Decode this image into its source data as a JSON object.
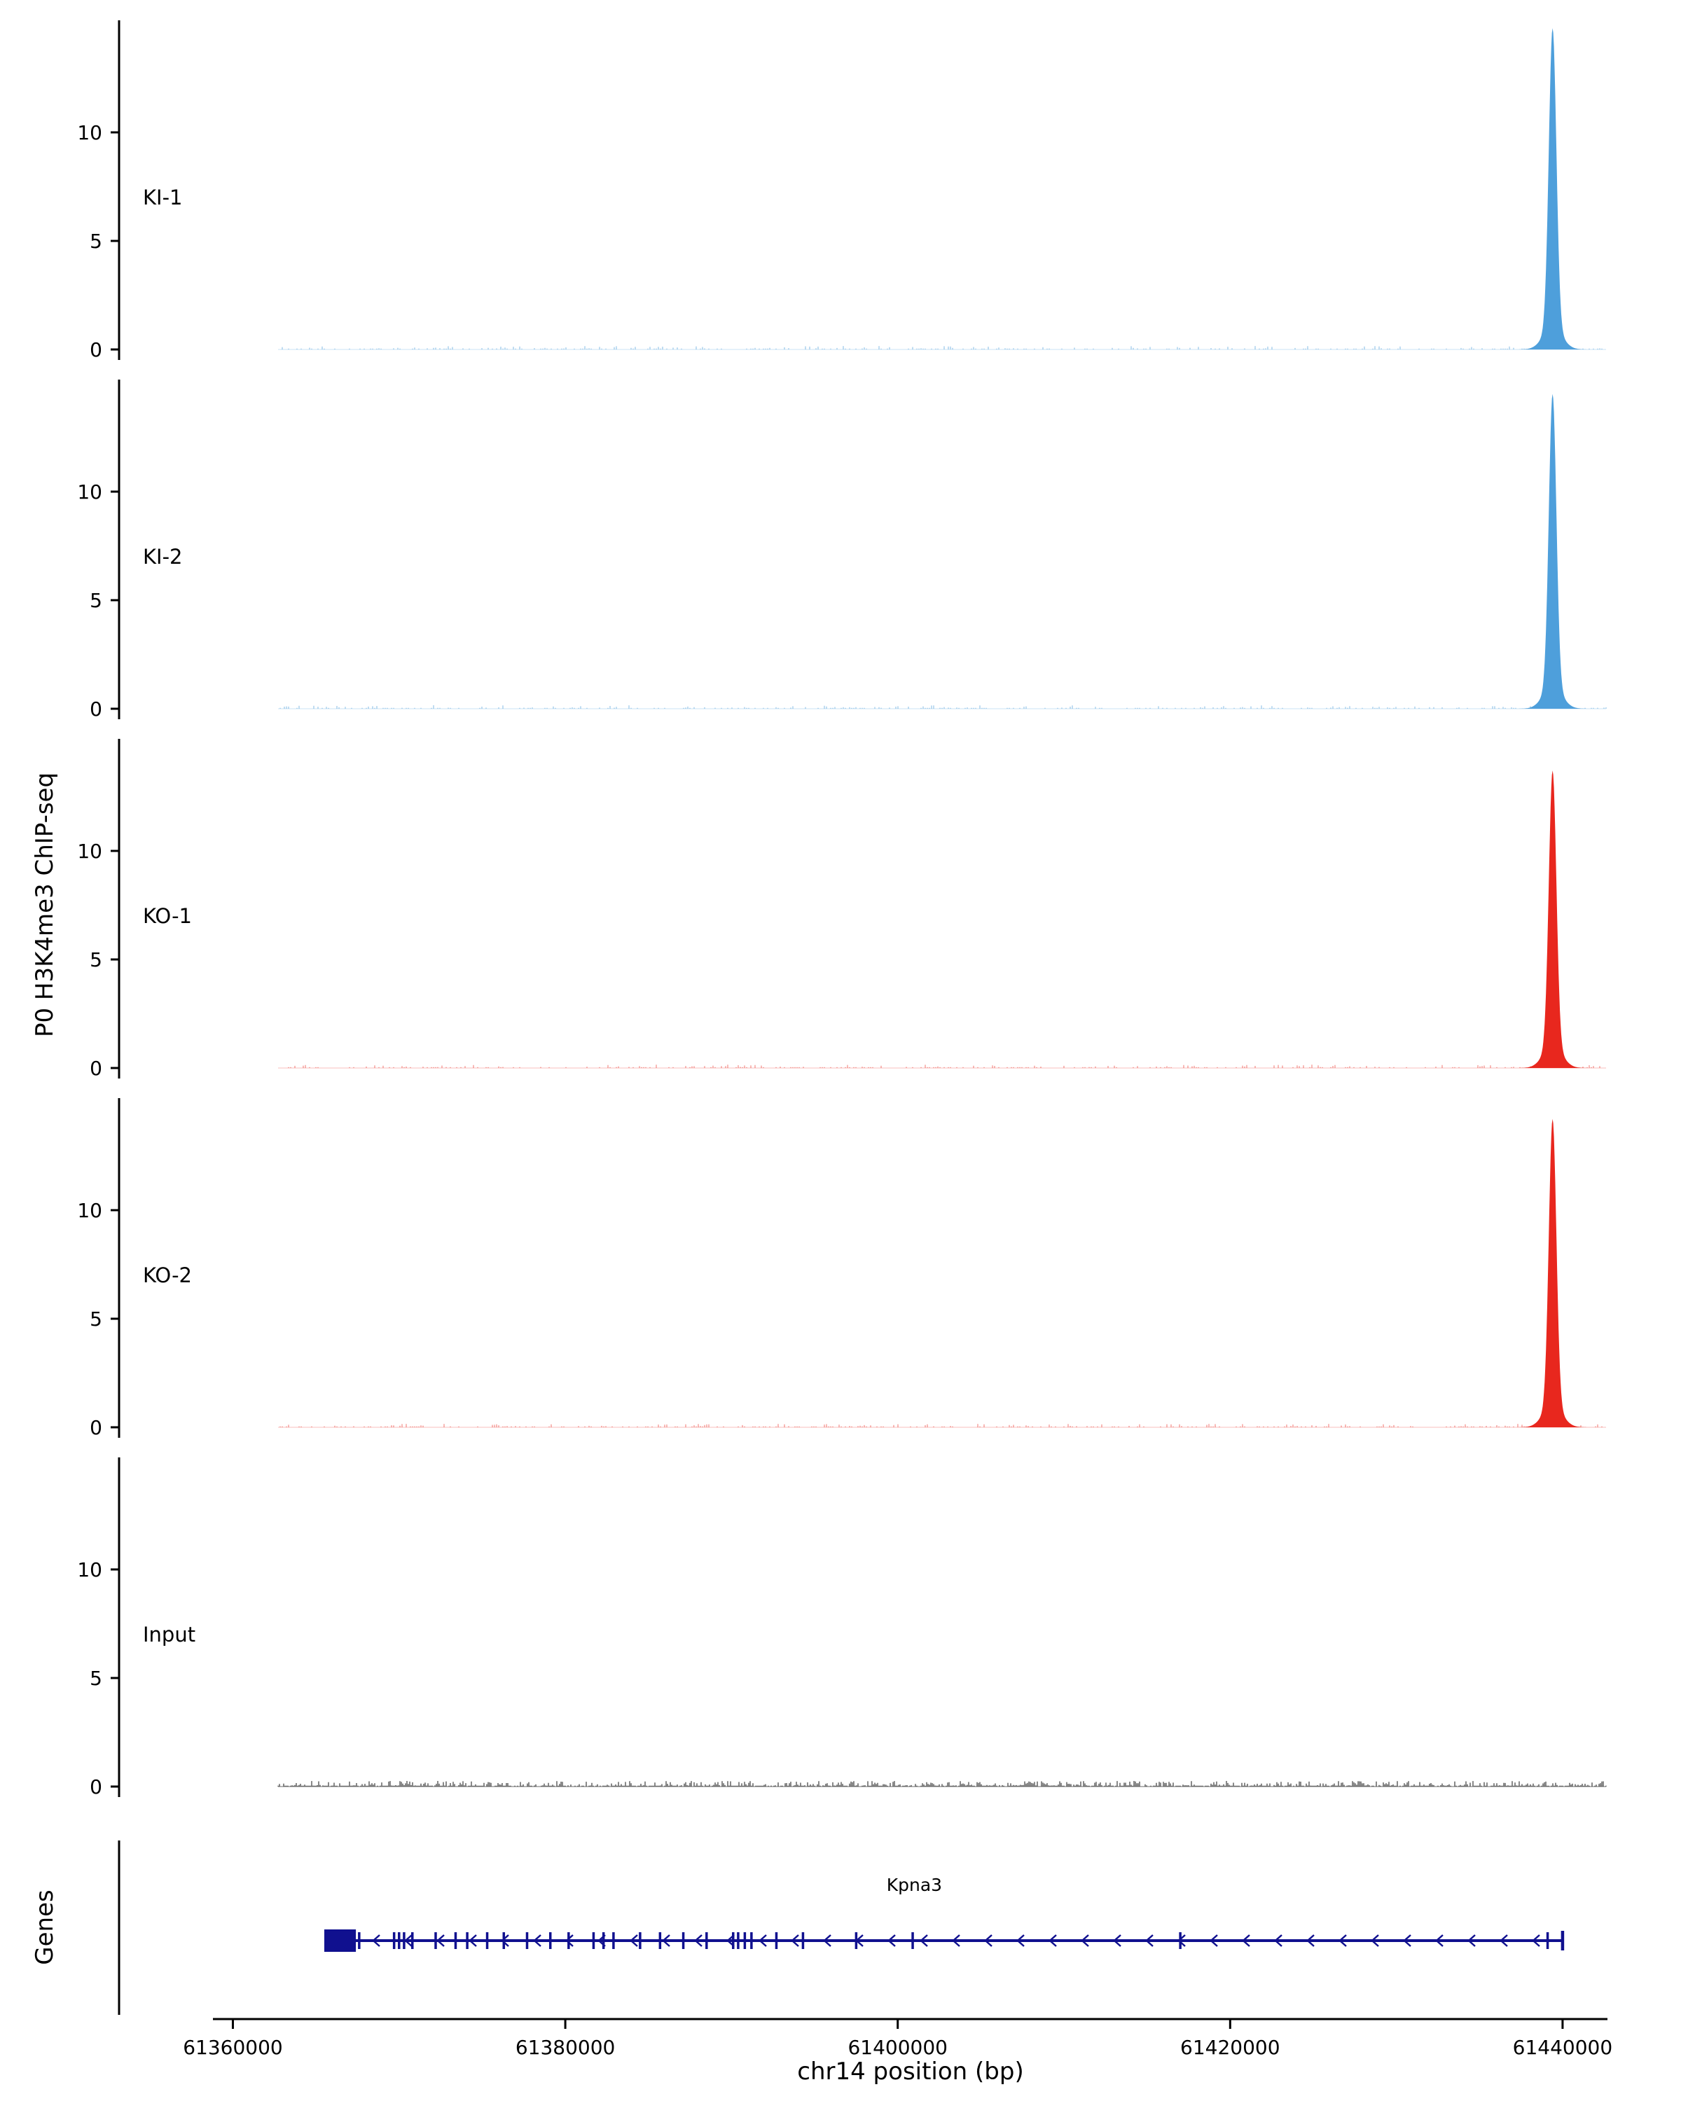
{
  "figure": {
    "y_axis_label": "P0 H3K4me3 ChIP-seq",
    "x_axis_label": "chr14 position (bp)",
    "genes_label": "Genes"
  },
  "chart_data": {
    "type": "area",
    "title": "",
    "xlabel": "chr14 position (bp)",
    "ylabel": "P0 H3K4me3 ChIP-seq",
    "xlim": [
      61358800,
      61442700
    ],
    "x_ticks": [
      61360000,
      61380000,
      61400000,
      61420000,
      61440000
    ],
    "y_ticks": [
      0,
      5,
      10
    ],
    "ylim": [
      0,
      15
    ],
    "legend": "none",
    "grid": false,
    "peak_center_bp": 61439400,
    "peak_sigma_bp": 320,
    "peak_shoulder_height": 1.0,
    "peak_shoulder_sigma_bp": 800,
    "tracks": [
      {
        "label": "KI-1",
        "color": "#4E9FDB",
        "peak_height": 13.8,
        "noise_seed": 11,
        "noise_skip": 0.62,
        "noise_max": 0.16,
        "noise_opacity": 0.35
      },
      {
        "label": "KI-2",
        "color": "#4E9FDB",
        "peak_height": 13.5,
        "noise_seed": 22,
        "noise_skip": 0.6,
        "noise_max": 0.16,
        "noise_opacity": 0.35
      },
      {
        "label": "KO-1",
        "color": "#E8271E",
        "peak_height": 12.7,
        "noise_seed": 33,
        "noise_skip": 0.62,
        "noise_max": 0.16,
        "noise_opacity": 0.32
      },
      {
        "label": "KO-2",
        "color": "#E8271E",
        "peak_height": 13.2,
        "noise_seed": 44,
        "noise_skip": 0.62,
        "noise_max": 0.16,
        "noise_opacity": 0.32
      },
      {
        "label": "Input",
        "color": "#3A3A3A",
        "peak_height": 0,
        "noise_seed": 55,
        "noise_skip": 0.15,
        "noise_max": 0.26,
        "noise_opacity": 0.6
      }
    ],
    "gene_track": {
      "gene_name": "Kpna3",
      "strand": "-",
      "color": "#10108F",
      "start_bp": 61365500,
      "end_bp": 61440000,
      "name_center_bp": 61401000,
      "utr_block": {
        "start_bp": 61365500,
        "end_bp": 61367400
      },
      "exons_bp": [
        61367600,
        61369700,
        61370000,
        61370300,
        61370800,
        61372200,
        61373400,
        61374100,
        61375300,
        61376300,
        61377700,
        61379100,
        61380200,
        61381700,
        61382300,
        61382900,
        61384500,
        61385700,
        61387100,
        61388500,
        61390100,
        61390400,
        61390800,
        61391200,
        61392700,
        61394300,
        61397500,
        61400900,
        61417000,
        61439100
      ]
    }
  }
}
